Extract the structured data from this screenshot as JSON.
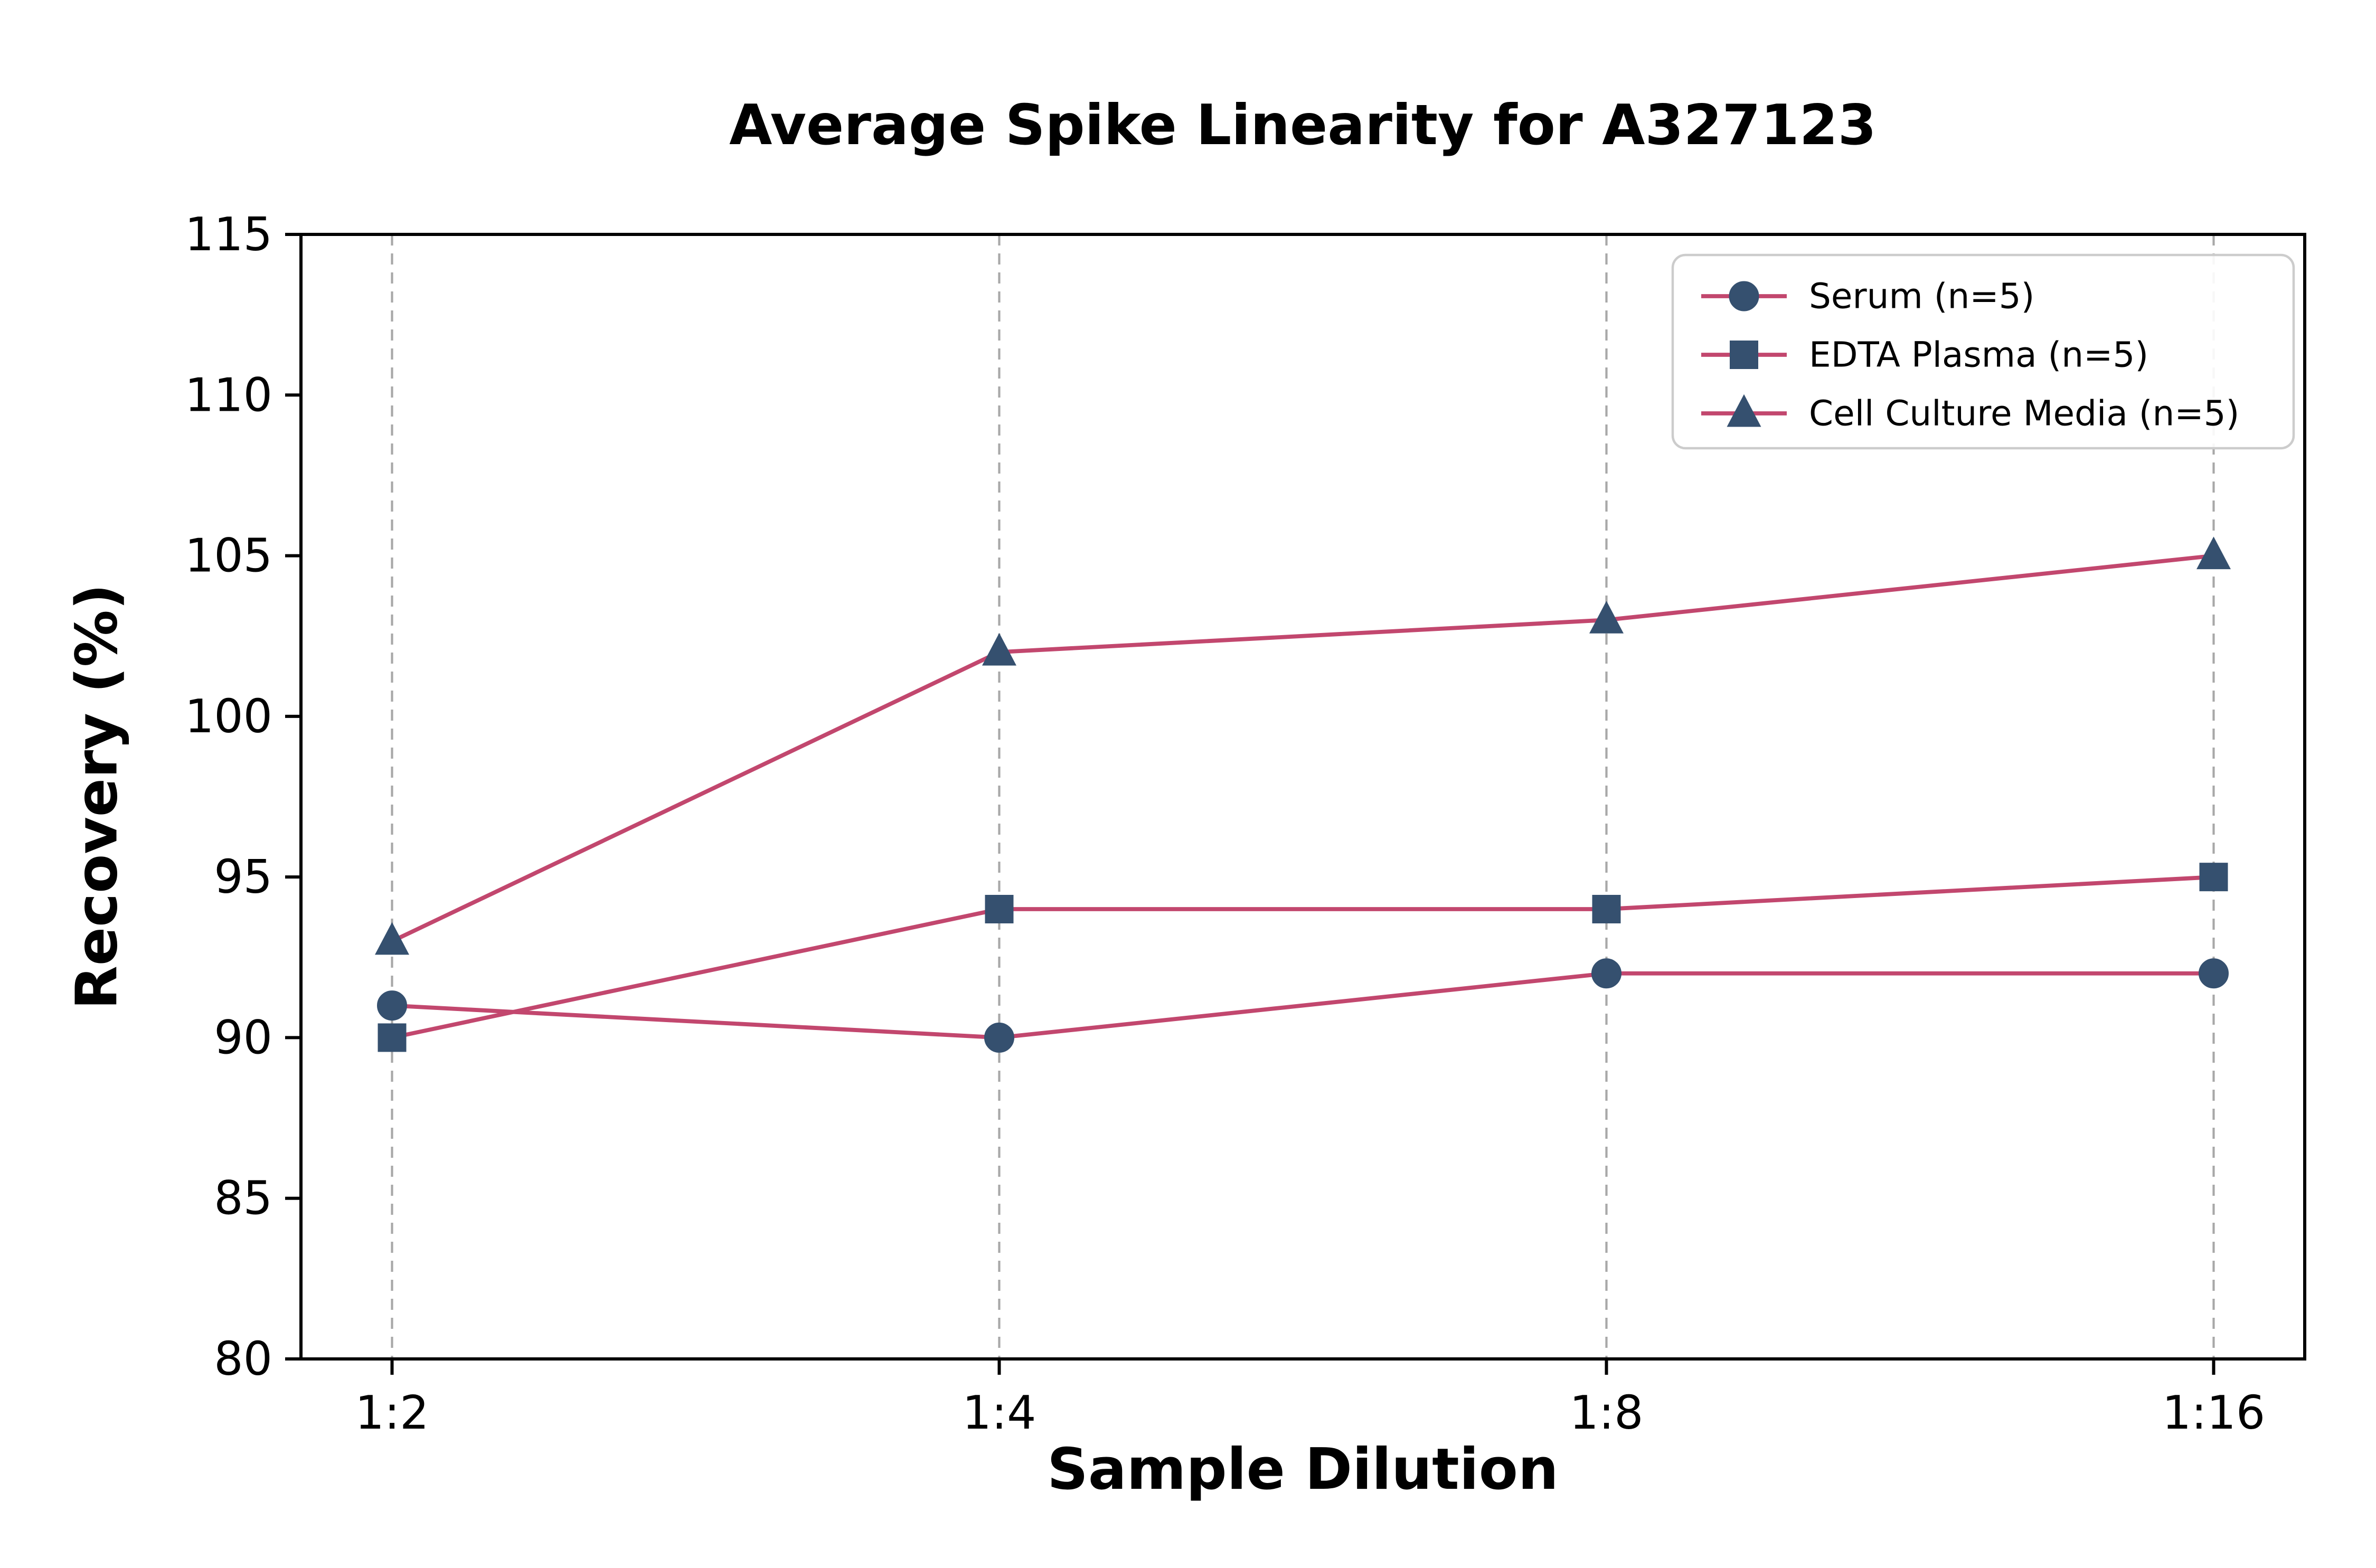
{
  "chart_data": {
    "type": "line",
    "title": "Average Spike Linearity for A327123",
    "xlabel": "Sample Dilution",
    "ylabel": "Recovery (%)",
    "categories": [
      "1:2",
      "1:4",
      "1:8",
      "1:16"
    ],
    "series": [
      {
        "name": "Serum (n=5)",
        "marker": "circle",
        "values": [
          91,
          90,
          92,
          92
        ]
      },
      {
        "name": "EDTA Plasma (n=5)",
        "marker": "square",
        "values": [
          90,
          94,
          94,
          95
        ]
      },
      {
        "name": "Cell Culture Media (n=5)",
        "marker": "triangle",
        "values": [
          93,
          102,
          103,
          105
        ]
      }
    ],
    "ylim": [
      80,
      115
    ],
    "yticks": [
      80,
      85,
      90,
      95,
      100,
      105,
      110,
      115
    ],
    "grid": "vertical-dashed",
    "legend_position": "upper right",
    "colors": {
      "line": "#C2476E",
      "marker": "#35506F",
      "grid": "#A8A8A8",
      "spine": "#000000",
      "text": "#000000",
      "legend_frame": "#CCCCCC",
      "background": "#FFFFFF"
    }
  }
}
